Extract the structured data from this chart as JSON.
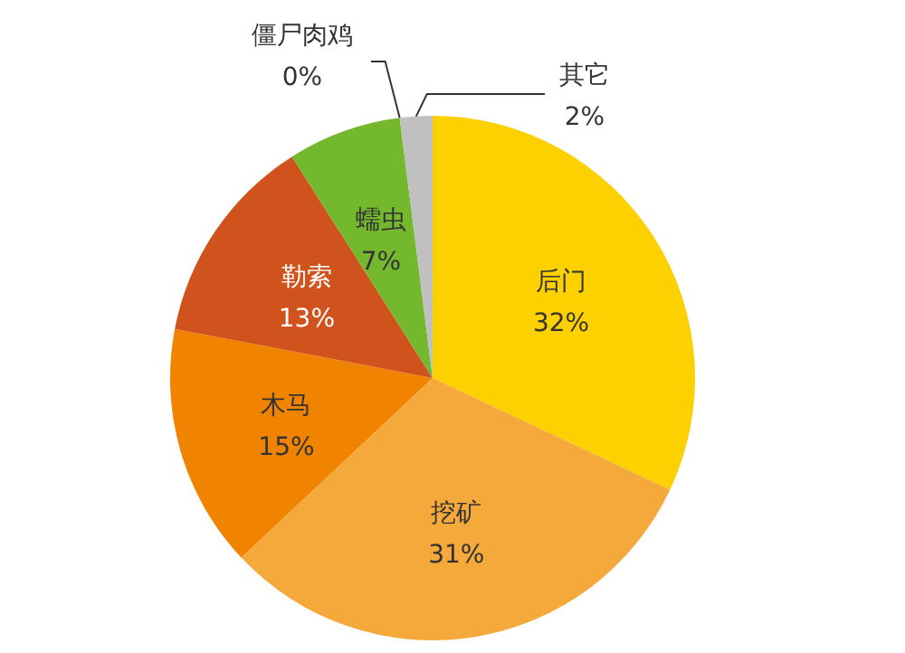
{
  "chart_data": {
    "type": "pie",
    "categories": [
      "后门",
      "挖矿",
      "木马",
      "勒索",
      "蠕虫",
      "僵尸肉鸡",
      "其它"
    ],
    "values": [
      32,
      31,
      15,
      13,
      7,
      0,
      2
    ],
    "colors": [
      "#fdd000",
      "#f5a93a",
      "#f08300",
      "#d0521c",
      "#74b82e",
      "#1a6e3c",
      "#c0c0c0"
    ],
    "value_labels": [
      "32%",
      "31%",
      "15%",
      "13%",
      "7%",
      "0%",
      "2%"
    ]
  }
}
